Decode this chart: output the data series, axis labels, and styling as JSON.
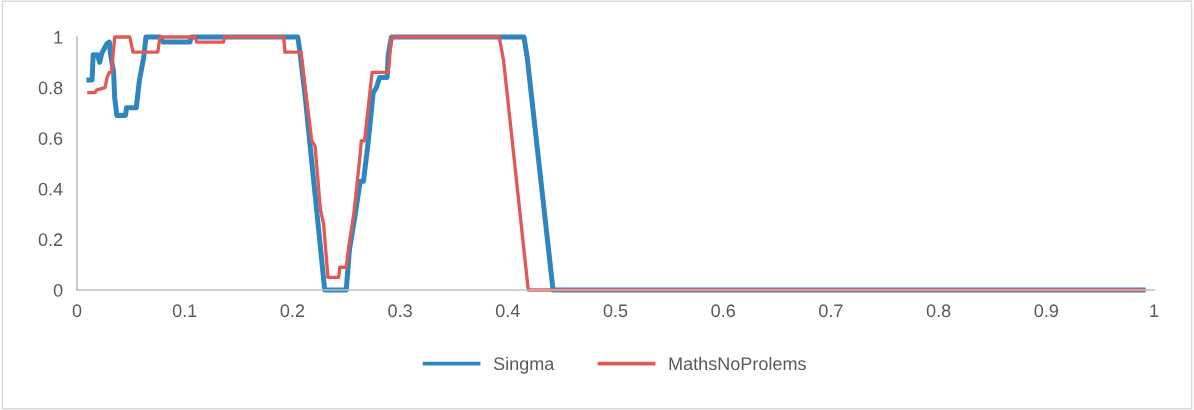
{
  "chart_data": {
    "type": "line",
    "xlim": [
      0,
      1
    ],
    "ylim": [
      0,
      1
    ],
    "xticks": [
      0,
      0.1,
      0.2,
      0.3,
      0.4,
      0.5,
      0.6,
      0.7,
      0.8,
      0.9,
      1
    ],
    "yticks": [
      0,
      0.2,
      0.4,
      0.6,
      0.8,
      1
    ],
    "grid": false,
    "legend": "bottom",
    "marker": "none",
    "line_style": "solid",
    "series": [
      {
        "name": "Singma",
        "color": "#2e86c1",
        "x": [
          0.011,
          0.014,
          0.015,
          0.019,
          0.021,
          0.023,
          0.026,
          0.028,
          0.03,
          0.031,
          0.034,
          0.035,
          0.037,
          0.045,
          0.046,
          0.055,
          0.058,
          0.062,
          0.064,
          0.077,
          0.08,
          0.105,
          0.106,
          0.205,
          0.207,
          0.212,
          0.216,
          0.221,
          0.226,
          0.23,
          0.25,
          0.253,
          0.258,
          0.263,
          0.266,
          0.27,
          0.275,
          0.278,
          0.281,
          0.288,
          0.289,
          0.292,
          0.415,
          0.418,
          0.442,
          0.99
        ],
        "values": [
          0.83,
          0.83,
          0.93,
          0.93,
          0.9,
          0.935,
          0.96,
          0.975,
          0.98,
          0.935,
          0.86,
          0.76,
          0.69,
          0.69,
          0.72,
          0.72,
          0.83,
          0.92,
          1,
          1,
          0.98,
          0.98,
          1,
          1,
          0.94,
          0.76,
          0.59,
          0.38,
          0.17,
          0,
          0,
          0.16,
          0.29,
          0.43,
          0.43,
          0.57,
          0.78,
          0.8,
          0.84,
          0.84,
          0.93,
          1,
          1,
          0.92,
          0,
          0
        ]
      },
      {
        "name": "MathsNoProlems",
        "color": "#e05a55",
        "x": [
          0.011,
          0.017,
          0.018,
          0.026,
          0.028,
          0.03,
          0.032,
          0.035,
          0.049,
          0.052,
          0.075,
          0.077,
          0.11,
          0.111,
          0.136,
          0.137,
          0.192,
          0.193,
          0.208,
          0.213,
          0.218,
          0.221,
          0.226,
          0.229,
          0.233,
          0.243,
          0.244,
          0.25,
          0.252,
          0.257,
          0.263,
          0.264,
          0.267,
          0.274,
          0.289,
          0.292,
          0.392,
          0.396,
          0.419,
          0.99
        ],
        "values": [
          0.78,
          0.78,
          0.79,
          0.8,
          0.84,
          0.86,
          0.86,
          1,
          1,
          0.94,
          0.94,
          1,
          1,
          0.98,
          0.98,
          1,
          1,
          0.94,
          0.94,
          0.76,
          0.59,
          0.57,
          0.32,
          0.26,
          0.05,
          0.05,
          0.09,
          0.09,
          0.16,
          0.3,
          0.54,
          0.59,
          0.59,
          0.86,
          0.86,
          1,
          1,
          0.91,
          0,
          0
        ]
      }
    ]
  }
}
